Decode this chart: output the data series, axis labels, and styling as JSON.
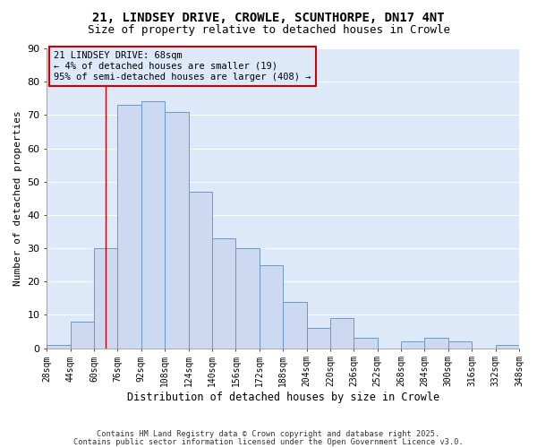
{
  "title_line1": "21, LINDSEY DRIVE, CROWLE, SCUNTHORPE, DN17 4NT",
  "title_line2": "Size of property relative to detached houses in Crowle",
  "xlabel": "Distribution of detached houses by size in Crowle",
  "ylabel": "Number of detached properties",
  "bin_starts": [
    28,
    44,
    60,
    76,
    92,
    108,
    124,
    140,
    156,
    172,
    188,
    204,
    220,
    236,
    252,
    268,
    284,
    300,
    316,
    332
  ],
  "bin_width": 16,
  "counts": [
    1,
    8,
    30,
    73,
    74,
    71,
    47,
    33,
    30,
    25,
    14,
    6,
    9,
    3,
    0,
    2,
    3,
    2,
    0,
    1
  ],
  "bar_color": "#ccd9f0",
  "bar_edge_color": "#6699cc",
  "vline_x": 68,
  "vline_color": "#cc0000",
  "ylim": [
    0,
    90
  ],
  "yticks": [
    0,
    10,
    20,
    30,
    40,
    50,
    60,
    70,
    80,
    90
  ],
  "annotation_text_line1": "21 LINDSEY DRIVE: 68sqm",
  "annotation_text_line2": "← 4% of detached houses are smaller (19)",
  "annotation_text_line3": "95% of semi-detached houses are larger (408) →",
  "footer_line1": "Contains HM Land Registry data © Crown copyright and database right 2025.",
  "footer_line2": "Contains public sector information licensed under the Open Government Licence v3.0.",
  "fig_background": "#ffffff",
  "plot_background": "#dde8f8",
  "grid_color": "#ffffff",
  "title_fontsize": 10,
  "subtitle_fontsize": 9
}
